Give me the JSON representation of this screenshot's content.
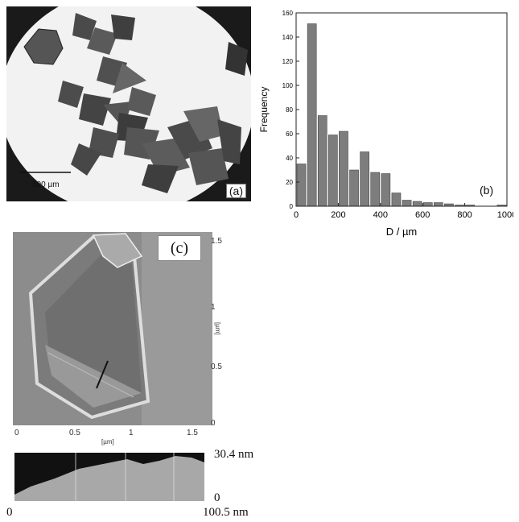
{
  "panel_a": {
    "label": "(a)",
    "scale_bar": "500 µm"
  },
  "panel_b": {
    "label": "(b)",
    "chart_data": {
      "type": "bar",
      "xlabel": "D / µm",
      "ylabel": "Frequency",
      "xlim": [
        0,
        1000
      ],
      "ylim": [
        0,
        160
      ],
      "x_ticks": [
        "0",
        "200",
        "400",
        "600",
        "800",
        "1000"
      ],
      "y_ticks": [
        "0",
        "20",
        "40",
        "60",
        "80",
        "100",
        "120",
        "140",
        "160"
      ],
      "bin_width": 50,
      "bin_starts": [
        0,
        50,
        100,
        150,
        200,
        250,
        300,
        350,
        400,
        450,
        500,
        550,
        600,
        650,
        700,
        750,
        800,
        850,
        900,
        950
      ],
      "values": [
        35,
        151,
        75,
        59,
        62,
        30,
        45,
        28,
        27,
        11,
        5,
        4,
        3,
        3,
        2,
        1,
        1,
        0,
        0,
        1
      ]
    }
  },
  "panel_c": {
    "label": "(c)",
    "right_ticks": [
      "1.5",
      "1",
      "0.5",
      "0"
    ],
    "right_unit": "[µm]",
    "bottom_ticks": [
      "0",
      "0.5",
      "1",
      "1.5"
    ],
    "bottom_unit": "[µm]"
  },
  "profile": {
    "y_max": "30.4 nm",
    "y_min": "0",
    "x_min": "0",
    "x_max": "100.5 nm"
  }
}
